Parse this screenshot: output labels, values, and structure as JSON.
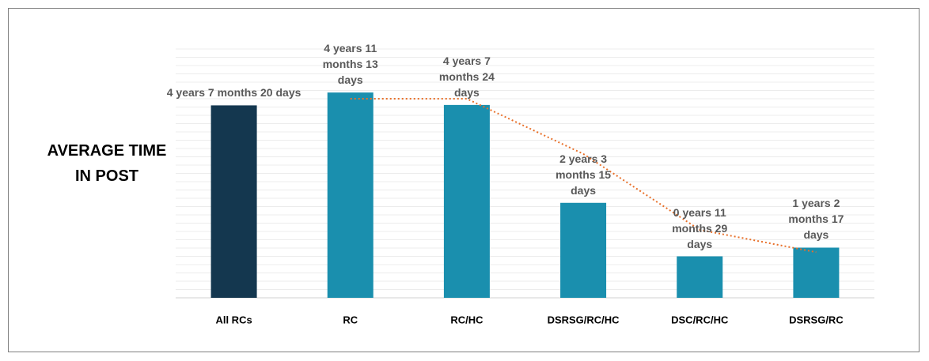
{
  "chart_data": {
    "type": "bar",
    "title": "AVERAGE TIME IN POST",
    "categories": [
      "All RCs",
      "RC",
      "RC/HC",
      "DSRSG/RC/HC",
      "DSC/RC/HC",
      "DSRSG/RC"
    ],
    "values": [
      4.64,
      4.95,
      4.65,
      2.29,
      1.0,
      1.21
    ],
    "value_labels": [
      "4 years 7 months 20 days",
      "4 years 11 months 13 days",
      "4 years 7 months 24 days",
      "2 years 3 months 15 days",
      "0 years 11 months 29 days",
      "1 years 2 months 17 days"
    ],
    "colors": [
      "#14374f",
      "#1a8fae",
      "#1a8fae",
      "#1a8fae",
      "#1a8fae",
      "#1a8fae"
    ],
    "trendline": {
      "values": [
        null,
        4.8,
        4.8,
        3.47,
        1.64,
        1.1
      ],
      "color": "#e8702a"
    },
    "ylim": [
      0,
      6
    ],
    "yticks": [
      0,
      0.2,
      0.4,
      0.6,
      0.8,
      1,
      1.2,
      1.4,
      1.6,
      1.8,
      2,
      2.2,
      2.4,
      2.6,
      2.8,
      3,
      3.2,
      3.4,
      3.6,
      3.8,
      4,
      4.2,
      4.4,
      4.6,
      4.8,
      5,
      5.2,
      5.4,
      5.6,
      5.8,
      6
    ],
    "grid": true
  }
}
